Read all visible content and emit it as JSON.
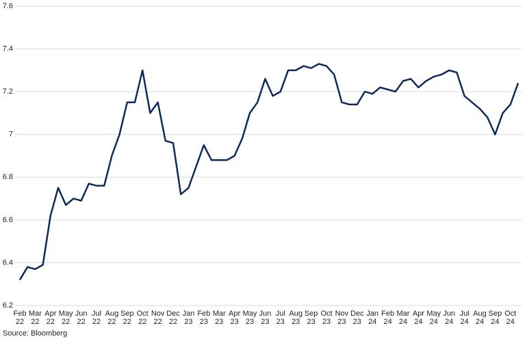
{
  "chart_data": {
    "type": "line",
    "source": "Source: Bloomberg",
    "categories": [
      "Feb 22",
      null,
      "Mar 22",
      null,
      "Apr 22",
      null,
      "May 22",
      null,
      "Jun 22",
      null,
      "Jul 22",
      null,
      "Aug 22",
      null,
      "Sep 22",
      null,
      "Oct 22",
      null,
      "Nov 22",
      null,
      "Dec 22",
      null,
      "Jan 23",
      null,
      "Feb 23",
      null,
      "Mar 23",
      null,
      "Apr 23",
      null,
      "May 23",
      null,
      "Jun 23",
      null,
      "Jul 23",
      null,
      "Aug 23",
      null,
      "Sep 23",
      null,
      "Oct 23",
      null,
      "Nov 23",
      null,
      "Dec 23",
      null,
      "Jan 24",
      null,
      "Feb 24",
      null,
      "Mar 24",
      null,
      "Apr 24",
      null,
      "May 24",
      null,
      "Jun 24",
      null,
      "Jul 24",
      null,
      "Aug 24",
      null,
      "Sep 24",
      null,
      "Oct 24",
      null
    ],
    "values": [
      6.32,
      6.38,
      6.37,
      6.39,
      6.62,
      6.75,
      6.67,
      6.7,
      6.69,
      6.77,
      6.76,
      6.76,
      6.9,
      7.0,
      7.15,
      7.15,
      7.3,
      7.1,
      7.15,
      6.97,
      6.96,
      6.72,
      6.75,
      6.85,
      6.95,
      6.88,
      6.88,
      6.88,
      6.9,
      6.98,
      7.1,
      7.15,
      7.26,
      7.18,
      7.2,
      7.3,
      7.3,
      7.32,
      7.31,
      7.33,
      7.32,
      7.28,
      7.15,
      7.14,
      7.14,
      7.2,
      7.19,
      7.22,
      7.21,
      7.2,
      7.25,
      7.26,
      7.22,
      7.25,
      7.27,
      7.28,
      7.3,
      7.29,
      7.18,
      7.15,
      7.12,
      7.08,
      7.0,
      7.1,
      7.14,
      7.24
    ],
    "color": "#0d2a5c",
    "ylim": [
      6.2,
      7.6
    ],
    "yticks": [
      6.2,
      6.4,
      6.6,
      6.8,
      7,
      7.2,
      7.4,
      7.6
    ],
    "grid": true
  }
}
